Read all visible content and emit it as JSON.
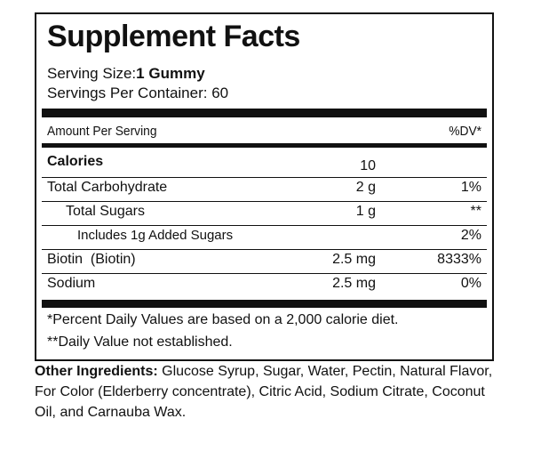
{
  "label": {
    "title": "Supplement Facts",
    "serving_size_label": "Serving Size:",
    "serving_size_value": "1 Gummy",
    "servings_per_container": "Servings Per Container: 60",
    "amount_per_serving": "Amount Per Serving",
    "dv_header": "%DV*",
    "rows": [
      {
        "name": "Calories",
        "amount": "10",
        "dv": ""
      },
      {
        "name": "Total Carbohydrate",
        "amount": "2 g",
        "dv": "1%"
      },
      {
        "name": "Total Sugars",
        "amount": "1 g",
        "dv": "**"
      },
      {
        "name": "Includes 1g Added Sugars",
        "amount": "",
        "dv": "2%"
      },
      {
        "name": "Biotin  (Biotin)",
        "amount": "2.5 mg",
        "dv": "8333%"
      },
      {
        "name": "Sodium",
        "amount": "2.5 mg",
        "dv": "0%"
      }
    ],
    "footnote_1": "*Percent Daily Values are based on a 2,000 calorie diet.",
    "footnote_2": "**Daily Value not established."
  },
  "other_ingredients": {
    "label": "Other Ingredients:",
    "text": " Glucose Syrup, Sugar, Water, Pectin, Natural Flavor, For Color (Elderberry concentrate), Citric Acid, Sodium Citrate, Coconut Oil, and Carnauba Wax."
  }
}
